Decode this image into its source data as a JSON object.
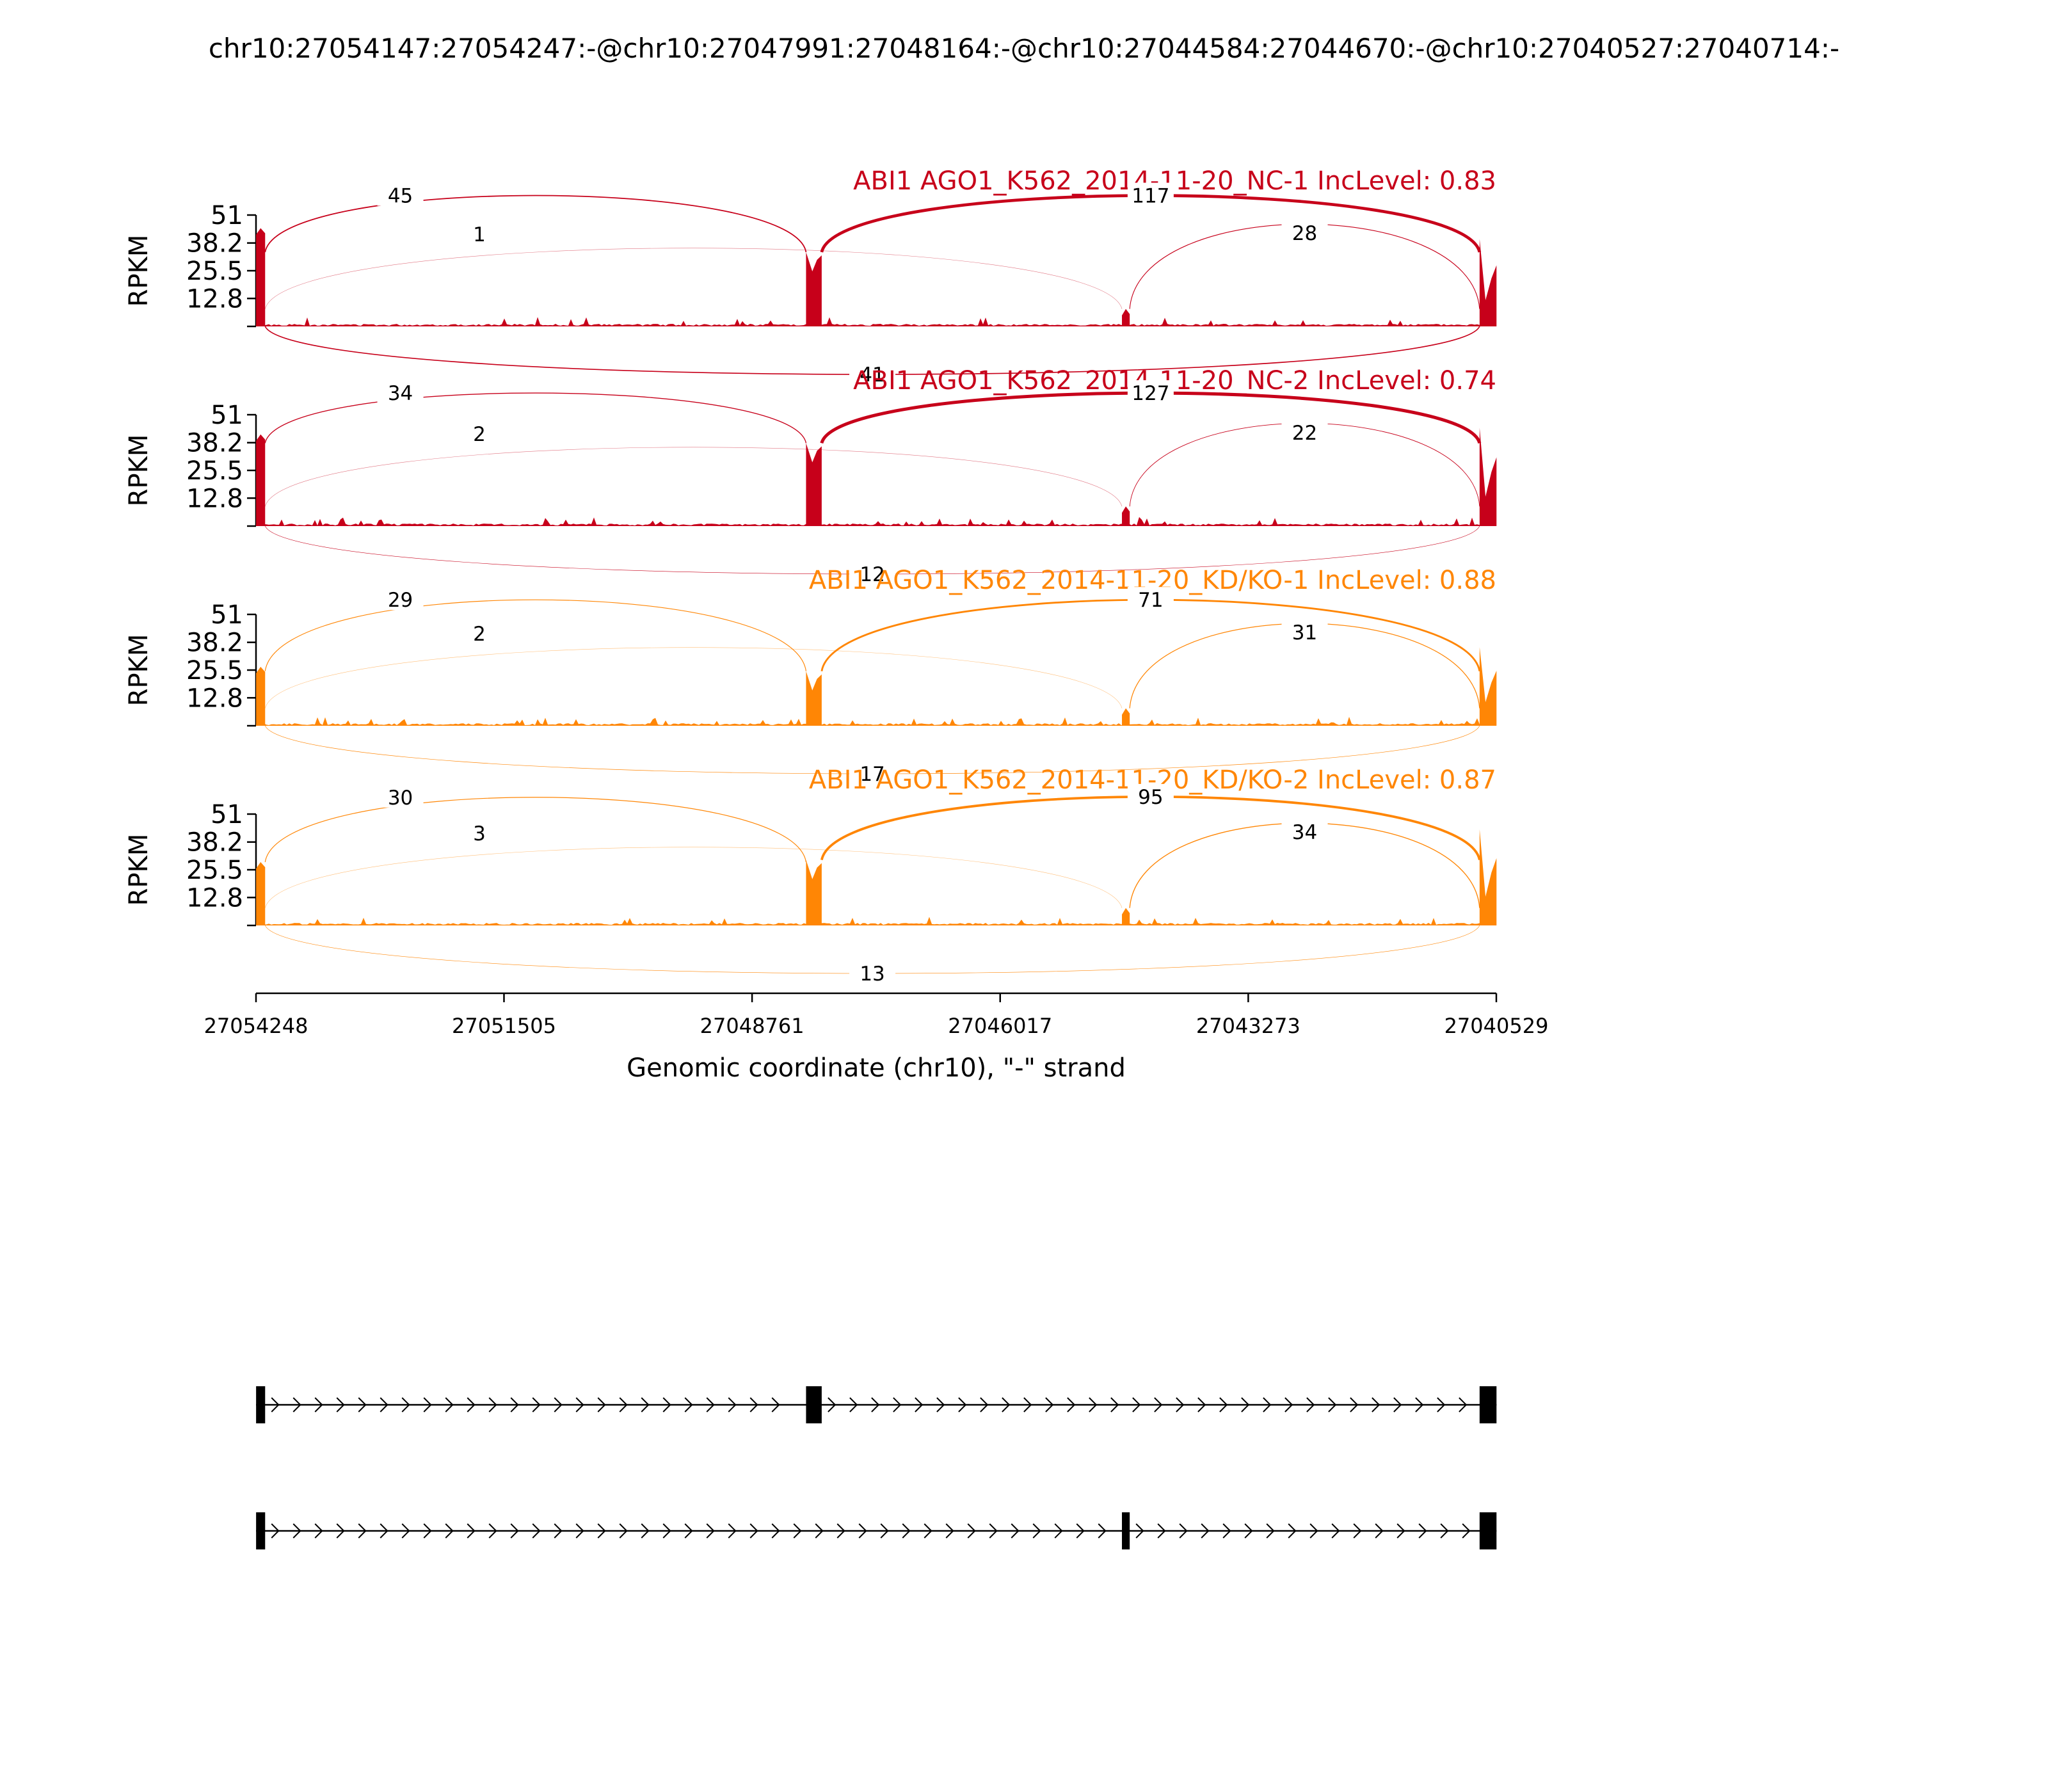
{
  "figure": {
    "title": "chr10:27054147:27054247:-@chr10:27047991:27048164:-@chr10:27044584:27044670:-@chr10:27040527:27040714:-"
  },
  "chart_data": {
    "type": "sashimi",
    "ylabel": "RPKM",
    "yticks": [
      "12.8",
      "25.5",
      "38.2",
      "51"
    ],
    "ymax": 51,
    "xlabel": "Genomic coordinate (chr10), \"-\" strand",
    "xticks": [
      "27054248",
      "27051505",
      "27048761",
      "27046017",
      "27043273",
      "27040529"
    ],
    "xrange": [
      27054248,
      27040529
    ],
    "exons": [
      {
        "start": 27054247,
        "end": 27054147
      },
      {
        "start": 27048164,
        "end": 27047991
      },
      {
        "start": 27044670,
        "end": 27044584
      },
      {
        "start": 27040714,
        "end": 27040527
      }
    ],
    "panels": [
      {
        "title": "ABI1 AGO1_K562_2014-11-20_NC-1 IncLevel: 0.83",
        "color": "#c7001a",
        "exon_heights": [
          45,
          34,
          8,
          40
        ],
        "junctions": [
          {
            "from": 0,
            "to": 1,
            "count": "45",
            "side": "top"
          },
          {
            "from": 0,
            "to": 2,
            "count": "1",
            "side": "top"
          },
          {
            "from": 1,
            "to": 3,
            "count": "117",
            "side": "top"
          },
          {
            "from": 2,
            "to": 3,
            "count": "28",
            "side": "top"
          },
          {
            "from": 0,
            "to": 3,
            "count": "41",
            "side": "bottom"
          }
        ]
      },
      {
        "title": "ABI1 AGO1_K562_2014-11-20_NC-2 IncLevel: 0.74",
        "color": "#c7001a",
        "exon_heights": [
          42,
          38,
          9,
          45
        ],
        "junctions": [
          {
            "from": 0,
            "to": 1,
            "count": "34",
            "side": "top"
          },
          {
            "from": 0,
            "to": 2,
            "count": "2",
            "side": "top"
          },
          {
            "from": 1,
            "to": 3,
            "count": "127",
            "side": "top"
          },
          {
            "from": 2,
            "to": 3,
            "count": "22",
            "side": "top"
          },
          {
            "from": 0,
            "to": 3,
            "count": "12",
            "side": "bottom"
          }
        ]
      },
      {
        "title": "ABI1 AGO1_K562_2014-11-20_KD/KO-1 IncLevel: 0.88",
        "color": "#ff8605",
        "exon_heights": [
          27,
          25,
          8,
          36
        ],
        "junctions": [
          {
            "from": 0,
            "to": 1,
            "count": "29",
            "side": "top"
          },
          {
            "from": 0,
            "to": 2,
            "count": "2",
            "side": "top"
          },
          {
            "from": 1,
            "to": 3,
            "count": "71",
            "side": "top"
          },
          {
            "from": 2,
            "to": 3,
            "count": "31",
            "side": "top"
          },
          {
            "from": 0,
            "to": 3,
            "count": "17",
            "side": "bottom"
          }
        ]
      },
      {
        "title": "ABI1 AGO1_K562_2014-11-20_KD/KO-2 IncLevel: 0.87",
        "color": "#ff8605",
        "exon_heights": [
          29,
          30,
          8,
          44
        ],
        "junctions": [
          {
            "from": 0,
            "to": 1,
            "count": "30",
            "side": "top"
          },
          {
            "from": 0,
            "to": 2,
            "count": "3",
            "side": "top"
          },
          {
            "from": 1,
            "to": 3,
            "count": "95",
            "side": "top"
          },
          {
            "from": 2,
            "to": 3,
            "count": "34",
            "side": "top"
          },
          {
            "from": 0,
            "to": 3,
            "count": "13",
            "side": "bottom"
          }
        ]
      }
    ],
    "isoforms": [
      {
        "exons": [
          0,
          1,
          3
        ]
      },
      {
        "exons": [
          0,
          2,
          3
        ]
      }
    ]
  }
}
